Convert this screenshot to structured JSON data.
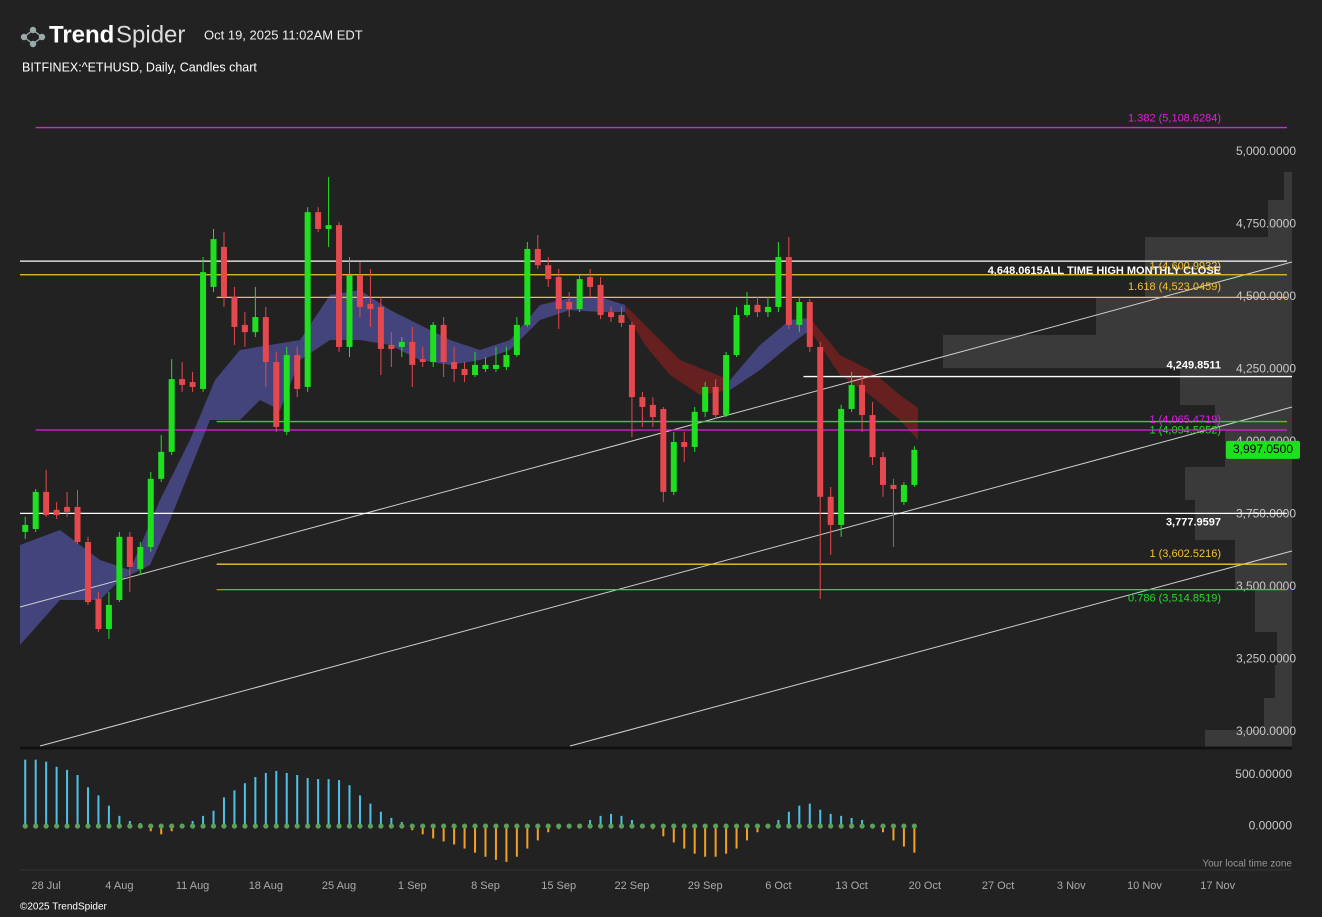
{
  "header": {
    "logo": [
      "Trend",
      "Spider"
    ],
    "timestamp": "Oct 19, 2025 11:02AM EDT"
  },
  "chart_data": {
    "type": "candlestick",
    "title": "BITFINEX:^ETHUSD, Daily, Candles chart",
    "up_color": "#1ee01e",
    "down_color": "#e5484d",
    "grid": false,
    "x": [
      -2,
      -1,
      0,
      1,
      2,
      3,
      4,
      5,
      6,
      7,
      8,
      9,
      10,
      11,
      12,
      13,
      14,
      15,
      16,
      17,
      18,
      19,
      20,
      21,
      22,
      23,
      24,
      25,
      26,
      27,
      28,
      29,
      30,
      31,
      32,
      33,
      34,
      35,
      36,
      37,
      38,
      39,
      40,
      41,
      42,
      43,
      44,
      45,
      46,
      47,
      48,
      49,
      50,
      51,
      52,
      53,
      54,
      55,
      56,
      57,
      58,
      59,
      60,
      61,
      62,
      63,
      64,
      65,
      66,
      67,
      68,
      69,
      70,
      71,
      72,
      73,
      74,
      75,
      76,
      77,
      78,
      79,
      80,
      81,
      82,
      83
    ],
    "open": [
      3714,
      3724,
      3852,
      3790,
      3800,
      3800,
      3679,
      3483,
      3379,
      3479,
      3697,
      3586,
      3662,
      3897,
      3990,
      4241,
      4231,
      4207,
      4559,
      4697,
      4524,
      4428,
      4403,
      4455,
      4300,
      4059,
      4324,
      4214,
      4817,
      4759,
      4772,
      4352,
      4600,
      4500,
      4490,
      4359,
      4352,
      4369,
      4310,
      4300,
      4428,
      4300,
      4276,
      4255,
      4276,
      4276,
      4283,
      4324,
      4428,
      4690,
      4634,
      4593,
      4507,
      4483,
      4593,
      4566,
      4472,
      4462,
      4428,
      4179,
      4152,
      4138,
      3852,
      4024,
      4007,
      4128,
      4214,
      4117,
      4324,
      4462,
      4497,
      4472,
      4490,
      4662,
      4428,
      4507,
      4352,
      3835,
      3738,
      4138,
      4221,
      4117,
      3972,
      3876,
      3817,
      3876
    ],
    "high": [
      3766,
      3862,
      3928,
      3817,
      3852,
      3859,
      3697,
      3507,
      3507,
      3714,
      3714,
      3679,
      3921,
      4048,
      4310,
      4300,
      4266,
      4662,
      4759,
      4748,
      4559,
      4472,
      4559,
      4490,
      4335,
      4352,
      4352,
      4834,
      4834,
      4938,
      4783,
      4662,
      4645,
      4621,
      4524,
      4403,
      4386,
      4421,
      4352,
      4438,
      4455,
      4352,
      4300,
      4335,
      4317,
      4352,
      4352,
      4455,
      4714,
      4738,
      4662,
      4621,
      4541,
      4600,
      4621,
      4593,
      4490,
      4490,
      4438,
      4197,
      4179,
      4145,
      4059,
      4059,
      4145,
      4231,
      4241,
      4335,
      4490,
      4541,
      4524,
      4524,
      4714,
      4731,
      4524,
      4517,
      4369,
      3869,
      4152,
      4266,
      4255,
      4162,
      3990,
      3897,
      3886,
      4010
    ],
    "low": [
      3690,
      3714,
      3766,
      3759,
      3766,
      3672,
      3462,
      3369,
      3345,
      3472,
      3507,
      3566,
      3645,
      3886,
      3979,
      4197,
      4197,
      4197,
      4541,
      4490,
      4359,
      4352,
      4386,
      4214,
      4059,
      4048,
      4179,
      4197,
      4748,
      4697,
      4335,
      4317,
      4455,
      4421,
      4255,
      4283,
      4317,
      4214,
      4283,
      4283,
      4248,
      4231,
      4231,
      4248,
      4266,
      4266,
      4272,
      4317,
      4421,
      4621,
      4559,
      4414,
      4455,
      4472,
      4524,
      4448,
      4438,
      4421,
      4041,
      4076,
      4076,
      3817,
      3841,
      3955,
      3990,
      4110,
      4103,
      4110,
      4317,
      4455,
      4455,
      4455,
      4472,
      4414,
      4403,
      4335,
      3483,
      3635,
      3697,
      4128,
      4059,
      3945,
      3835,
      3662,
      3807,
      3869
    ],
    "close": [
      3738,
      3852,
      3772,
      3772,
      3783,
      3679,
      3472,
      3379,
      3462,
      3697,
      3593,
      3662,
      3897,
      3990,
      4241,
      4221,
      4214,
      4610,
      4724,
      4524,
      4421,
      4403,
      4455,
      4300,
      4076,
      4324,
      4207,
      4817,
      4759,
      4772,
      4352,
      4600,
      4490,
      4483,
      4345,
      4345,
      4369,
      4290,
      4300,
      4428,
      4300,
      4276,
      4255,
      4290,
      4290,
      4290,
      4324,
      4428,
      4690,
      4634,
      4586,
      4483,
      4483,
      4586,
      4559,
      4462,
      4455,
      4435,
      4179,
      4145,
      4110,
      3852,
      4024,
      4007,
      4128,
      4214,
      4117,
      4324,
      4462,
      4497,
      4472,
      4490,
      4662,
      4428,
      4507,
      4352,
      3835,
      3738,
      4138,
      4221,
      4117,
      3972,
      3876,
      3862,
      3876,
      3997.05
    ],
    "xlim": [
      -2.5,
      119.1
    ],
    "xticks": [
      {
        "value": 0,
        "label": "28 Jul"
      },
      {
        "value": 7,
        "label": "4 Aug"
      },
      {
        "value": 14,
        "label": "11 Aug"
      },
      {
        "value": 21,
        "label": "18 Aug"
      },
      {
        "value": 28,
        "label": "25 Aug"
      },
      {
        "value": 35,
        "label": "1 Sep"
      },
      {
        "value": 42,
        "label": "8 Sep"
      },
      {
        "value": 49,
        "label": "15 Sep"
      },
      {
        "value": 56,
        "label": "22 Sep"
      },
      {
        "value": 63,
        "label": "29 Sep"
      },
      {
        "value": 70,
        "label": "6 Oct"
      },
      {
        "value": 77,
        "label": "13 Oct"
      },
      {
        "value": 84,
        "label": "20 Oct"
      },
      {
        "value": 91,
        "label": "27 Oct"
      },
      {
        "value": 98,
        "label": "3 Nov"
      },
      {
        "value": 105,
        "label": "10 Nov"
      },
      {
        "value": 112,
        "label": "17 Nov"
      }
    ],
    "ylim": [
      2972,
      5221
    ],
    "yticks": [
      {
        "value": 5000,
        "label": "5,000.0000"
      },
      {
        "value": 4750,
        "label": "4,750.0000"
      },
      {
        "value": 4500,
        "label": "4,500.0000"
      },
      {
        "value": 4250,
        "label": "4,250.0000"
      },
      {
        "value": 4000,
        "label": "4,000.0000"
      },
      {
        "value": 3750,
        "label": "3,750.0000"
      },
      {
        "value": 3500,
        "label": "3,500.0000"
      },
      {
        "value": 3250,
        "label": "3,250.0000"
      },
      {
        "value": 3000,
        "label": "3,000.0000"
      }
    ],
    "levels": [
      {
        "value": 5108.6284,
        "label": "1.382 (5,108.6284)",
        "color": "#e21ee2",
        "start": -1
      },
      {
        "value": 4648.0615,
        "label": "4,648.0615ALL TIME HIGH MONTHLY CLOSE",
        "color": "#ffffff"
      },
      {
        "value": 4600.9932,
        "label": "1 (4,600.9932)",
        "color": "#f2c230"
      },
      {
        "value": 4523.0459,
        "label": "1.618 (4,523.0459)",
        "color": "#f2c230",
        "start": 16.3
      },
      {
        "value": 4249.8511,
        "label": "4,249.8511",
        "color": "#ffffff",
        "start": 72.4
      },
      {
        "value": 4094.5952,
        "label": "1 (4,094.5952)",
        "color": "#22dd22",
        "start": 16.3
      },
      {
        "value": 4065.4719,
        "label": "1 (4,065.4719)",
        "color": "#e21ee2",
        "start": -1
      },
      {
        "value": 3777.9597,
        "label": "3,777.9597",
        "color": "#ffffff"
      },
      {
        "value": 3602.5216,
        "label": "1 (3,602.5216)",
        "color": "#f2c230",
        "start": 16.3
      },
      {
        "value": 3514.8519,
        "label": "0.786 (3,514.8519)",
        "color": "#22dd22",
        "start": 16.3
      }
    ],
    "last_price": {
      "value": 3997.05,
      "label": "3,997.0500",
      "color": "#1ee01e"
    },
    "oscillator": {
      "up_color": "#4cc3e6",
      "down_color": "#f5a020",
      "ylim": [
        -410,
        725
      ],
      "yticks": [
        {
          "value": 500,
          "label": "500.00000"
        },
        {
          "value": 0,
          "label": "0.00000"
        }
      ],
      "values": [
        650,
        650,
        630,
        580,
        550,
        500,
        380,
        300,
        200,
        100,
        50,
        30,
        -50,
        -80,
        -50,
        20,
        50,
        100,
        150,
        280,
        350,
        420,
        480,
        520,
        540,
        520,
        500,
        470,
        460,
        460,
        450,
        400,
        300,
        220,
        140,
        80,
        40,
        -40,
        -80,
        -120,
        -150,
        -180,
        -220,
        -260,
        -300,
        -330,
        -350,
        -300,
        -220,
        -140,
        -60,
        -30,
        -20,
        20,
        60,
        100,
        120,
        100,
        60,
        20,
        -30,
        -100,
        -160,
        -220,
        -270,
        -300,
        -300,
        -270,
        -220,
        -140,
        -60,
        -20,
        60,
        140,
        200,
        220,
        160,
        120,
        100,
        80,
        60,
        20,
        -60,
        -140,
        -200,
        -260
      ]
    },
    "note": "Your local time zone"
  },
  "footer": {
    "copyright": "©2025 TrendSpider"
  }
}
